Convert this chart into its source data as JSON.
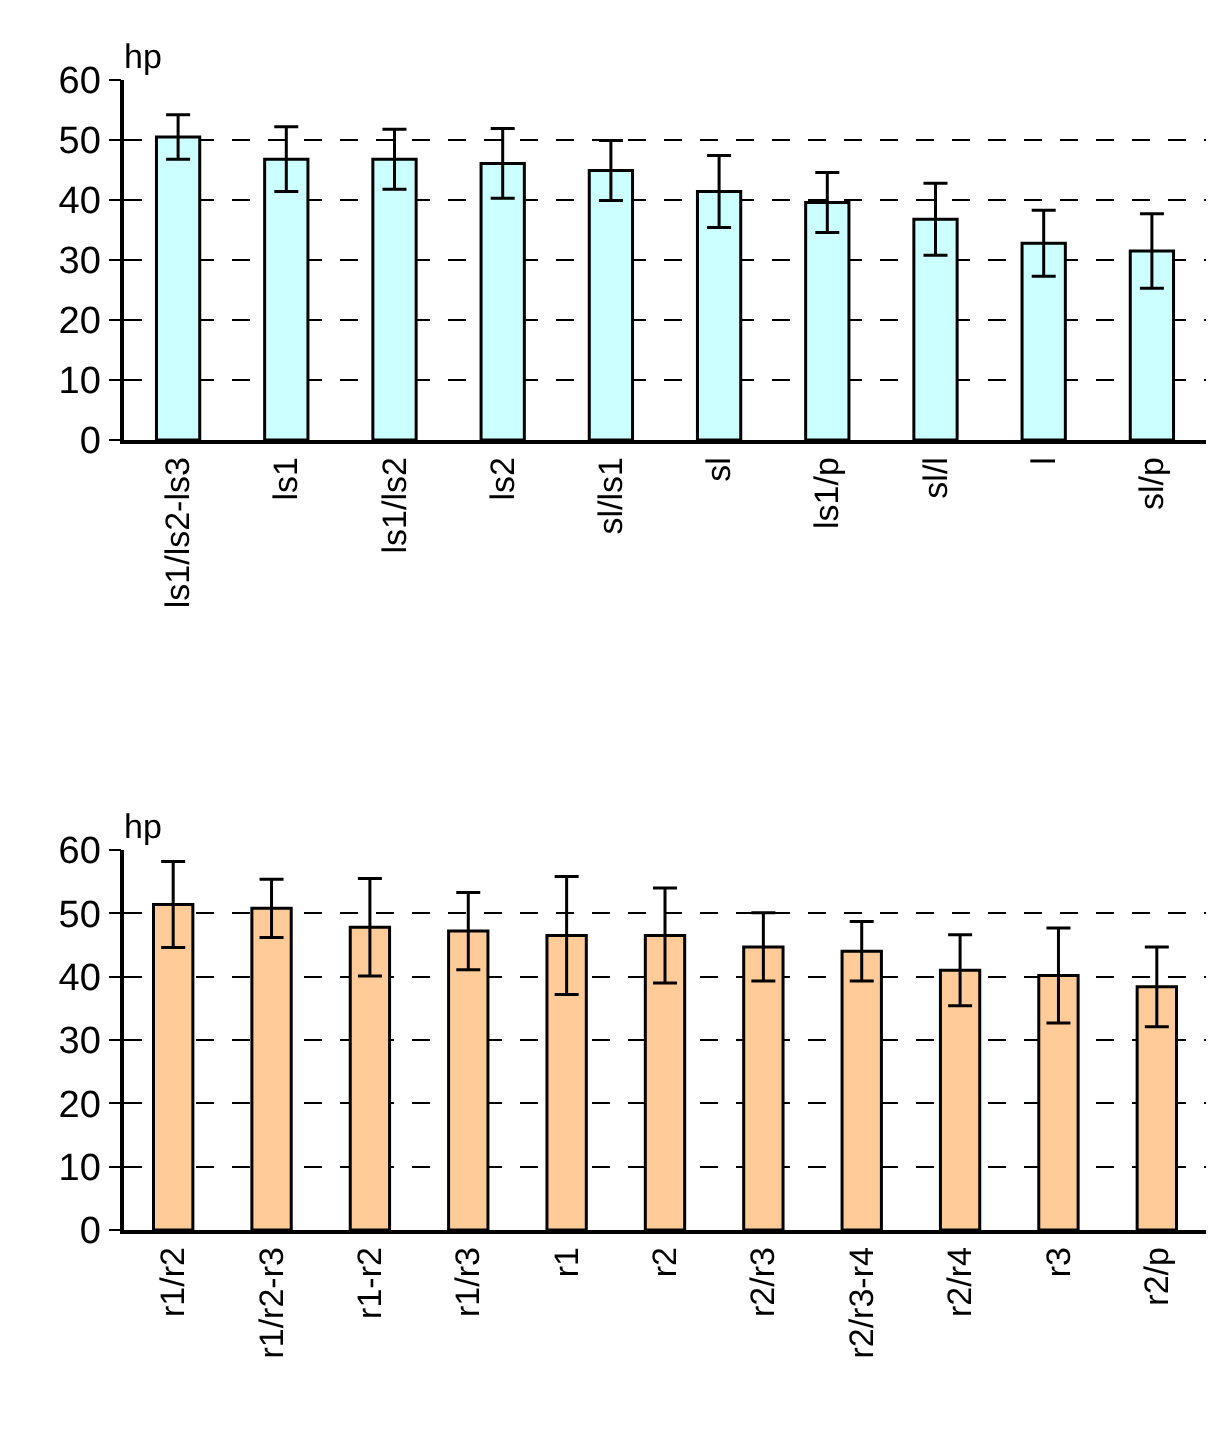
{
  "chart_data": [
    {
      "type": "bar",
      "ylabel": "hp",
      "categories": [
        "ls1/ls2-ls3",
        "ls1",
        "ls1/ls2",
        "ls2",
        "sl/ls1",
        "sl",
        "ls1/p",
        "sl/l",
        "l",
        "sl/p"
      ],
      "series": [
        {
          "color": "#ccffff",
          "values": [
            50.5,
            46.8,
            46.8,
            46.1,
            44.9,
            41.4,
            39.6,
            36.8,
            32.8,
            31.5
          ],
          "errors": [
            3.7,
            5.4,
            5,
            5.8,
            5,
            6,
            5,
            6,
            5.5,
            6.2
          ]
        }
      ],
      "ylim": [
        0,
        60
      ],
      "yticks": [
        0,
        10,
        20,
        30,
        40,
        50,
        60
      ],
      "grid": "y"
    },
    {
      "type": "bar",
      "ylabel": "hp",
      "categories": [
        "r1/r2",
        "r1/r2-r3",
        "r1-r2",
        "r1/r3",
        "r1",
        "r2",
        "r2/r3",
        "r2/r3-r4",
        "r2/r4",
        "r3",
        "r2/p"
      ],
      "series": [
        {
          "color": "#ffcc99",
          "values": [
            51.4,
            50.8,
            47.8,
            47.2,
            46.5,
            46.5,
            44.7,
            44,
            41,
            40.2,
            38.4
          ],
          "errors": [
            6.8,
            4.6,
            7.7,
            6.1,
            9.3,
            7.5,
            5.4,
            4.7,
            5.6,
            7.5,
            6.3
          ]
        }
      ],
      "ylim": [
        0,
        60
      ],
      "yticks": [
        0,
        10,
        20,
        30,
        40,
        50,
        60
      ],
      "grid": "y"
    }
  ]
}
